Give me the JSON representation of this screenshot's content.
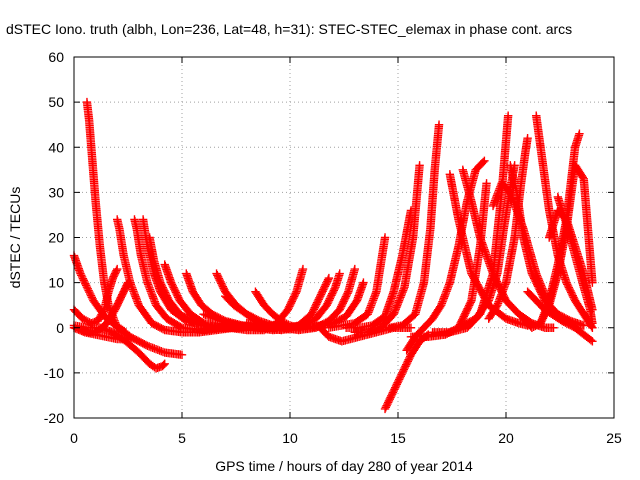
{
  "chart_data": {
    "type": "scatter",
    "title": "dSTEC Iono. truth (albh, Lon=236, Lat=48, h=31): STEC-STEC_elemax in phase cont. arcs",
    "xlabel": "GPS time / hours of day 280 of year 2014",
    "ylabel": "dSTEC  / TECUs",
    "xlim": [
      0,
      25
    ],
    "ylim": [
      -20,
      60
    ],
    "xticks": [
      0,
      5,
      10,
      15,
      20,
      25
    ],
    "yticks": [
      -20,
      -10,
      0,
      10,
      20,
      30,
      40,
      50,
      60
    ],
    "grid": true,
    "marker": "+",
    "color": "#ff0000",
    "series": [
      {
        "x": [
          0.0,
          0.3,
          0.6,
          0.9,
          1.2,
          1.5,
          1.8,
          2.1,
          2.4
        ],
        "y": [
          16.0,
          12.0,
          9.0,
          6.0,
          4.0,
          2.0,
          1.0,
          0.0,
          -1.0
        ]
      },
      {
        "x": [
          0.0,
          0.5,
          1.0,
          1.5,
          2.0,
          2.6
        ],
        "y": [
          0.0,
          -1.0,
          -1.5,
          -2.0,
          -2.5,
          -2.6
        ]
      },
      {
        "x": [
          0.0,
          0.4,
          0.8,
          1.1,
          1.4,
          1.6,
          1.8,
          2.0
        ],
        "y": [
          4.0,
          2.0,
          1.0,
          1.5,
          4.0,
          8.0,
          11.0,
          13.0
        ]
      },
      {
        "x": [
          0.0,
          0.6,
          1.2,
          1.8,
          2.4,
          3.0,
          3.5,
          3.8,
          4.1,
          4.2
        ],
        "y": [
          0.5,
          0.0,
          0.0,
          -1.0,
          -3.0,
          -5.5,
          -8.0,
          -9.0,
          -8.5,
          -8.0
        ]
      },
      {
        "x": [
          0.6,
          0.7,
          0.8,
          0.9,
          1.0,
          1.2,
          1.4,
          1.6,
          2.0,
          2.6,
          3.4,
          4.2,
          5.0
        ],
        "y": [
          50.0,
          46.0,
          40.0,
          34.0,
          28.0,
          18.0,
          10.0,
          5.0,
          0.0,
          -2.0,
          -4.0,
          -5.5,
          -6.0
        ]
      },
      {
        "x": [
          0.4,
          0.7,
          1.0,
          1.3,
          1.6,
          1.9,
          2.1,
          2.3,
          2.5
        ],
        "y": [
          -0.5,
          -1.0,
          -1.0,
          0.0,
          1.5,
          4.0,
          6.0,
          8.0,
          10.0
        ]
      },
      {
        "x": [
          2.0,
          2.1,
          2.3,
          2.6,
          3.0,
          3.6,
          4.2,
          5.0,
          5.8,
          6.6,
          7.4
        ],
        "y": [
          24.0,
          22.0,
          16.0,
          10.0,
          5.0,
          1.0,
          -0.5,
          -1.0,
          -1.0,
          -0.5,
          0.0
        ]
      },
      {
        "x": [
          2.8,
          2.9,
          3.1,
          3.4,
          3.8,
          4.3,
          5.0,
          6.0,
          7.0,
          8.0
        ],
        "y": [
          24.0,
          22.0,
          16.0,
          10.0,
          5.0,
          2.0,
          0.0,
          -0.5,
          0.0,
          0.5
        ]
      },
      {
        "x": [
          3.2,
          3.4,
          3.7,
          4.0,
          4.5,
          5.2,
          6.0,
          7.0,
          8.0
        ],
        "y": [
          24.0,
          18.0,
          12.0,
          8.0,
          4.0,
          1.5,
          0.5,
          0.0,
          0.0
        ]
      },
      {
        "x": [
          3.5,
          3.7,
          4.0,
          4.4,
          4.9,
          5.6,
          6.4,
          7.4,
          8.4
        ],
        "y": [
          20.0,
          15.0,
          10.0,
          6.0,
          3.0,
          1.0,
          0.0,
          0.0,
          0.5
        ]
      },
      {
        "x": [
          4.2,
          4.5,
          4.9,
          5.4,
          6.0,
          6.8,
          7.6,
          8.4
        ],
        "y": [
          14.0,
          10.0,
          6.0,
          3.0,
          1.0,
          0.0,
          0.0,
          0.5
        ]
      },
      {
        "x": [
          5.2,
          5.5,
          5.9,
          6.4,
          7.0,
          7.8,
          8.6,
          9.4
        ],
        "y": [
          12.0,
          8.0,
          5.0,
          3.0,
          1.5,
          0.5,
          0.0,
          0.0
        ]
      },
      {
        "x": [
          6.6,
          7.0,
          7.5,
          8.0,
          8.6,
          9.2,
          10.0
        ],
        "y": [
          12.0,
          8.0,
          5.0,
          3.0,
          1.0,
          0.0,
          0.0
        ]
      },
      {
        "x": [
          7.0,
          7.4,
          8.0,
          8.6,
          9.2,
          10.0
        ],
        "y": [
          7.0,
          5.0,
          3.0,
          1.5,
          0.5,
          0.0
        ]
      },
      {
        "x": [
          8.4,
          8.8,
          9.2,
          9.6,
          10.0,
          10.4
        ],
        "y": [
          8.0,
          5.0,
          3.0,
          1.5,
          0.5,
          0.0
        ]
      },
      {
        "x": [
          6.0,
          6.8,
          7.6,
          8.4,
          9.2,
          10.0,
          10.8,
          11.6
        ],
        "y": [
          3.0,
          1.5,
          0.5,
          0.0,
          -0.5,
          -0.3,
          0.0,
          0.5
        ]
      },
      {
        "x": [
          7.2,
          8.0,
          8.8,
          9.4,
          9.9,
          10.3,
          10.6
        ],
        "y": [
          0.0,
          -0.5,
          -0.5,
          1.0,
          4.0,
          8.0,
          13.0
        ]
      },
      {
        "x": [
          8.0,
          8.8,
          9.6,
          10.4,
          11.0,
          11.4,
          11.8
        ],
        "y": [
          1.0,
          0.0,
          -0.5,
          0.5,
          3.0,
          7.0,
          11.0
        ]
      },
      {
        "x": [
          9.0,
          9.8,
          10.6,
          11.2,
          11.7,
          12.1,
          12.3
        ],
        "y": [
          0.5,
          0.0,
          0.5,
          2.0,
          5.0,
          9.0,
          12.0
        ]
      },
      {
        "x": [
          9.6,
          10.4,
          11.2,
          11.8,
          12.3,
          12.7,
          13.0
        ],
        "y": [
          0.0,
          -0.5,
          0.0,
          1.5,
          4.0,
          8.0,
          13.0
        ]
      },
      {
        "x": [
          10.8,
          11.4,
          12.0,
          12.6,
          13.1,
          13.4
        ],
        "y": [
          0.0,
          0.5,
          1.0,
          2.5,
          6.0,
          10.0
        ]
      },
      {
        "x": [
          11.4,
          11.8,
          12.4,
          13.2,
          14.0,
          14.8,
          15.6
        ],
        "y": [
          0.0,
          -2.0,
          -3.0,
          -2.0,
          -1.0,
          0.0,
          0.0
        ]
      },
      {
        "x": [
          11.8,
          12.4,
          13.0,
          13.6,
          14.0,
          14.2,
          14.4
        ],
        "y": [
          0.0,
          0.5,
          1.0,
          3.0,
          8.0,
          14.0,
          20.0
        ]
      },
      {
        "x": [
          12.6,
          13.2,
          13.8,
          14.4,
          14.8,
          15.2,
          15.6
        ],
        "y": [
          0.0,
          0.0,
          0.5,
          2.5,
          8.0,
          16.0,
          26.0
        ]
      },
      {
        "x": [
          13.0,
          13.6,
          14.2,
          14.8,
          15.3,
          15.7,
          16.0
        ],
        "y": [
          -1.0,
          -1.0,
          0.0,
          3.0,
          9.0,
          20.0,
          36.0
        ]
      },
      {
        "x": [
          14.4,
          14.8,
          15.2,
          15.6,
          16.0,
          16.4
        ],
        "y": [
          -18.0,
          -14.0,
          -10.0,
          -6.0,
          -3.0,
          -1.5
        ]
      },
      {
        "x": [
          15.4,
          15.8,
          16.2,
          16.6,
          17.0,
          17.4,
          17.8,
          18.2,
          18.6,
          19.0
        ],
        "y": [
          -5.0,
          -2.0,
          0.0,
          2.0,
          5.0,
          10.0,
          18.0,
          28.0,
          35.0,
          37.0
        ]
      },
      {
        "x": [
          14.6,
          15.2,
          15.8,
          16.2,
          16.5,
          16.7,
          16.9
        ],
        "y": [
          0.0,
          0.5,
          3.0,
          10.0,
          22.0,
          35.0,
          45.0
        ]
      },
      {
        "x": [
          15.6,
          16.4,
          17.2,
          17.8,
          18.4,
          18.8,
          19.1
        ],
        "y": [
          -2.0,
          -2.0,
          -1.5,
          0.0,
          6.0,
          18.0,
          32.0
        ]
      },
      {
        "x": [
          16.6,
          17.4,
          18.2,
          18.8,
          19.4,
          19.8,
          20.1
        ],
        "y": [
          -1.0,
          -1.0,
          0.0,
          3.0,
          12.0,
          30.0,
          47.0
        ]
      },
      {
        "x": [
          17.4,
          17.8,
          18.4,
          19.2,
          20.0,
          20.6,
          21.0
        ],
        "y": [
          34.0,
          24.0,
          12.0,
          5.0,
          2.0,
          1.0,
          0.5
        ]
      },
      {
        "x": [
          18.0,
          18.4,
          18.8,
          19.4,
          20.0,
          20.6,
          21.2,
          21.8,
          22.2
        ],
        "y": [
          35.0,
          28.0,
          20.0,
          12.0,
          6.0,
          3.0,
          1.0,
          0.0,
          0.0
        ]
      },
      {
        "x": [
          17.8,
          18.6,
          19.2,
          19.6,
          19.9,
          20.2,
          20.4
        ],
        "y": [
          0.0,
          2.0,
          6.0,
          12.0,
          22.0,
          31.0,
          36.0
        ]
      },
      {
        "x": [
          19.4,
          19.8,
          20.2,
          20.8,
          21.4,
          22.0,
          22.6
        ],
        "y": [
          27.0,
          32.0,
          30.0,
          22.0,
          12.0,
          5.0,
          1.5
        ]
      },
      {
        "x": [
          20.2,
          20.5,
          20.8,
          21.2,
          21.8,
          22.4,
          23.0,
          23.6
        ],
        "y": [
          36.0,
          30.0,
          20.0,
          12.0,
          6.0,
          3.0,
          1.5,
          0.5
        ]
      },
      {
        "x": [
          19.2,
          19.6,
          20.0,
          20.4,
          20.7,
          20.9,
          21.0
        ],
        "y": [
          2.0,
          5.0,
          10.0,
          20.0,
          32.0,
          39.0,
          42.0
        ]
      },
      {
        "x": [
          21.4,
          21.6,
          22.0,
          22.4,
          22.8,
          23.2,
          23.6,
          24.0
        ],
        "y": [
          47.0,
          40.0,
          26.0,
          16.0,
          10.0,
          6.0,
          3.0,
          0.0
        ]
      },
      {
        "x": [
          20.8,
          21.2,
          21.6,
          22.0,
          22.4,
          22.8,
          23.2,
          23.6,
          24.0
        ],
        "y": [
          2.0,
          0.0,
          1.0,
          5.0,
          12.0,
          22.0,
          36.0,
          33.0,
          10.0
        ]
      },
      {
        "x": [
          21.6,
          22.0,
          22.4,
          22.8,
          23.0,
          23.2,
          23.4
        ],
        "y": [
          1.0,
          6.0,
          14.0,
          24.0,
          32.0,
          40.0,
          43.0
        ]
      },
      {
        "x": [
          22.4,
          22.8,
          23.2,
          23.6,
          23.9,
          24.0
        ],
        "y": [
          29.0,
          23.0,
          16.0,
          9.0,
          4.0,
          1.0
        ]
      },
      {
        "x": [
          21.0,
          21.8,
          22.6,
          23.2,
          23.6,
          24.0
        ],
        "y": [
          8.0,
          4.0,
          1.5,
          0.0,
          -1.5,
          -3.0
        ]
      },
      {
        "x": [
          22.0,
          22.4,
          22.8,
          23.2,
          23.6,
          24.0
        ],
        "y": [
          20.0,
          26.0,
          24.0,
          18.0,
          12.0,
          4.0
        ]
      }
    ]
  }
}
